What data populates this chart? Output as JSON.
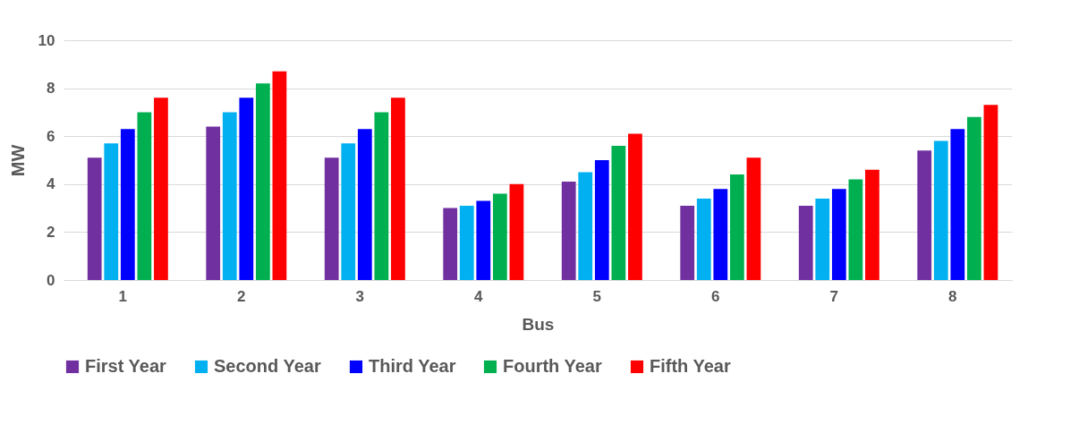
{
  "chart_data": {
    "type": "bar",
    "xlabel": "Bus",
    "ylabel": "MW",
    "categories": [
      "1",
      "2",
      "3",
      "4",
      "5",
      "6",
      "7",
      "8"
    ],
    "series": [
      {
        "name": "First Year",
        "color": "#7030a0",
        "values": [
          5.1,
          6.4,
          5.1,
          3.0,
          4.1,
          3.1,
          3.1,
          5.4
        ]
      },
      {
        "name": "Second Year",
        "color": "#00b0f0",
        "values": [
          5.7,
          7.0,
          5.7,
          3.1,
          4.5,
          3.4,
          3.4,
          5.8
        ]
      },
      {
        "name": "Third Year",
        "color": "#0000ff",
        "values": [
          6.3,
          7.6,
          6.3,
          3.3,
          5.0,
          3.8,
          3.8,
          6.3
        ]
      },
      {
        "name": "Fourth Year",
        "color": "#00b050",
        "values": [
          7.0,
          8.2,
          7.0,
          3.6,
          5.6,
          4.4,
          4.2,
          6.8
        ]
      },
      {
        "name": "Fifth Year",
        "color": "#ff0000",
        "values": [
          7.6,
          8.7,
          7.6,
          4.0,
          6.1,
          5.1,
          4.6,
          7.3
        ]
      }
    ],
    "ylim": [
      0,
      10
    ],
    "yticks": [
      0,
      2,
      4,
      6,
      8,
      10
    ],
    "grid": "y",
    "legend": "bottom"
  }
}
